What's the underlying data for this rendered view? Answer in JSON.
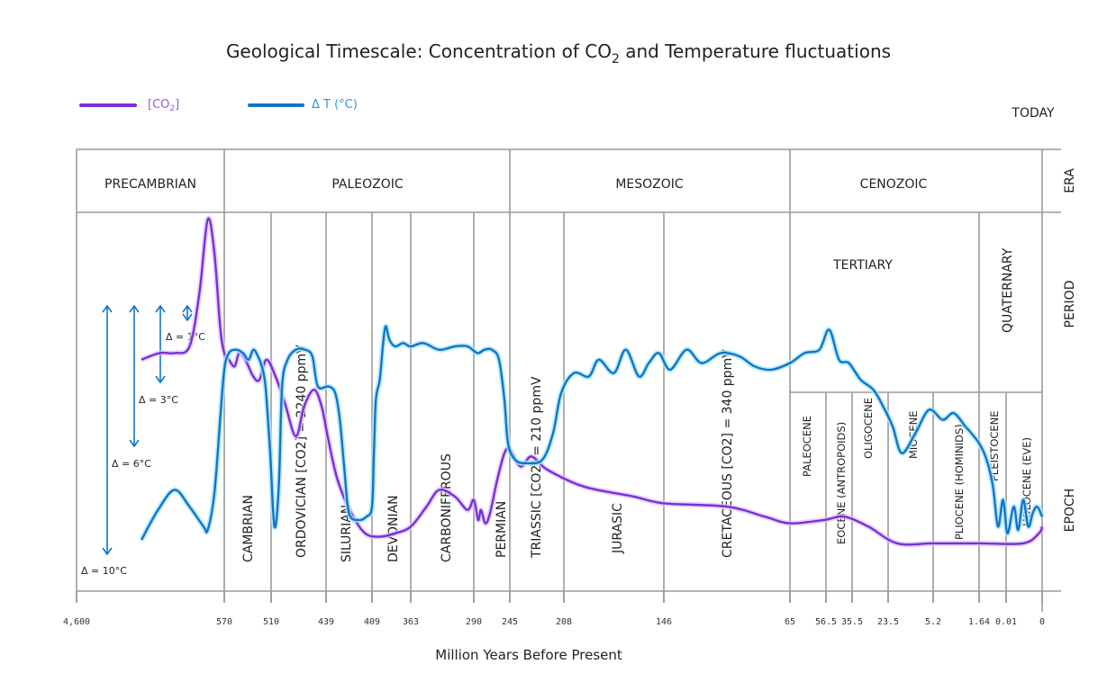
{
  "chart_data": {
    "type": "line",
    "title": "Geological Timescale: Concentration of CO₂ and Temperature fluctuations",
    "title_parts": {
      "before": "Geological Timescale: Concentration of CO",
      "sub": "2",
      "after": " and Temperature  fluctuations"
    },
    "xlabel": "Million Years Before Present",
    "today_label": "TODAY",
    "x_scale": "categorical-ticks (non-linear)",
    "x_ticks": [
      "4,600",
      "570",
      "510",
      "439",
      "409",
      "363",
      "290",
      "245",
      "208",
      "146",
      "65",
      "56.5",
      "35.5",
      "23.5",
      "5.2",
      "1.64",
      "0.01",
      "0"
    ],
    "x_tick_values": [
      4600,
      570,
      510,
      439,
      409,
      363,
      290,
      245,
      208,
      146,
      65,
      56.5,
      35.5,
      23.5,
      5.2,
      1.64,
      0.01,
      0
    ],
    "grid": true,
    "legend": {
      "placement": "top-left",
      "entries": [
        {
          "name": "[CO2]",
          "label_main": "[CO",
          "label_sub": "2",
          "label_end": "]",
          "color": "#7a2fd6",
          "text_color": "#9b59d9"
        },
        {
          "name": "ΔT (°C)",
          "label_main": "Δ T (°C)",
          "color": "#1474c4",
          "text_color": "#2a9ad6"
        }
      ]
    },
    "row_labels": {
      "era": "ERA",
      "period": "PERIOD",
      "epoch": "EPOCH"
    },
    "eras": [
      {
        "name": "PRECAMBRIAN",
        "from": 4600,
        "to": 570
      },
      {
        "name": "PALEOZOIC",
        "from": 570,
        "to": 245
      },
      {
        "name": "MESOZOIC",
        "from": 245,
        "to": 65
      },
      {
        "name": "CENOZOIC",
        "from": 65,
        "to": 0
      }
    ],
    "periods": [
      {
        "name": "CAMBRIAN",
        "from": 570,
        "to": 510
      },
      {
        "name": "ORDOVICIAN [CO2] = 2240 ppmV",
        "from": 510,
        "to": 439
      },
      {
        "name": "SILURIAN",
        "from": 439,
        "to": 409
      },
      {
        "name": "DEVONIAN",
        "from": 409,
        "to": 363
      },
      {
        "name": "CARBONIFEROUS",
        "from": 363,
        "to": 290
      },
      {
        "name": "PERMIAN",
        "from": 290,
        "to": 245
      },
      {
        "name": "TRIASSIC [CO2] = 210 ppmV",
        "from": 245,
        "to": 208
      },
      {
        "name": "JURASIC",
        "from": 208,
        "to": 146
      },
      {
        "name": "CRETACEOUS [CO2] = 340 ppmV",
        "from": 146,
        "to": 65
      },
      {
        "name": "TERTIARY",
        "from": 65,
        "to": 1.64
      },
      {
        "name": "QUATERNARY",
        "from": 1.64,
        "to": 0
      }
    ],
    "epochs": [
      {
        "name": "PALEOCENE",
        "from": 65,
        "to": 56.5
      },
      {
        "name": "EOCENE (ANTROPOIDS)",
        "from": 56.5,
        "to": 35.5
      },
      {
        "name": "OLIGOCENE",
        "from": 35.5,
        "to": 23.5
      },
      {
        "name": "MIOCENE",
        "from": 23.5,
        "to": 5.2
      },
      {
        "name": "PLIOCENE (HOMINIDS)",
        "from": 5.2,
        "to": 1.64,
        "color": "#5a5ad0"
      },
      {
        "name": "PLEISTOCENE",
        "from": 1.64,
        "to": 0.01
      },
      {
        "name": "HOLOCENE (EVE)",
        "from": 0.01,
        "to": 0
      }
    ],
    "annotations": [
      {
        "text": "Δ = 1°C",
        "delta_c": 1
      },
      {
        "text": "Δ = 3°C",
        "delta_c": 3
      },
      {
        "text": "Δ = 6°C",
        "delta_c": 6
      },
      {
        "text": "Δ = 10°C",
        "delta_c": 10
      }
    ],
    "y_note": "relative scale, 0 = bottom of plot, 1 = top of period row",
    "series": [
      {
        "name": "[CO2]",
        "color": "#7a2fd6",
        "points": [
          [
            0.0,
            0.58
          ],
          [
            0.22,
            0.6
          ],
          [
            0.4,
            0.6
          ],
          [
            0.58,
            0.62
          ],
          [
            0.7,
            0.78
          ],
          [
            0.8,
            1.0
          ],
          [
            0.88,
            0.9
          ],
          [
            0.95,
            0.68
          ],
          [
            1.0,
            0.6
          ],
          [
            1.1,
            0.58
          ],
          [
            1.22,
            0.56
          ],
          [
            1.32,
            0.6
          ],
          [
            1.45,
            0.58
          ],
          [
            1.62,
            0.53
          ],
          [
            1.75,
            0.52
          ],
          [
            1.9,
            0.58
          ],
          [
            2.08,
            0.53
          ],
          [
            2.25,
            0.45
          ],
          [
            2.45,
            0.35
          ],
          [
            2.6,
            0.44
          ],
          [
            2.78,
            0.49
          ],
          [
            2.92,
            0.44
          ],
          [
            3.05,
            0.34
          ],
          [
            3.25,
            0.22
          ],
          [
            3.55,
            0.12
          ],
          [
            3.85,
            0.06
          ],
          [
            4.2,
            0.05
          ],
          [
            4.6,
            0.06
          ],
          [
            5.0,
            0.08
          ],
          [
            5.25,
            0.14
          ],
          [
            5.45,
            0.19
          ],
          [
            5.7,
            0.17
          ],
          [
            5.9,
            0.13
          ],
          [
            6.0,
            0.16
          ],
          [
            6.12,
            0.1
          ],
          [
            6.2,
            0.13
          ],
          [
            6.32,
            0.09
          ],
          [
            6.45,
            0.12
          ],
          [
            6.65,
            0.22
          ],
          [
            6.85,
            0.3
          ],
          [
            7.0,
            0.31
          ],
          [
            7.2,
            0.26
          ],
          [
            7.4,
            0.29
          ],
          [
            7.7,
            0.25
          ],
          [
            8.2,
            0.2
          ],
          [
            8.7,
            0.17
          ],
          [
            9.0,
            0.15
          ],
          [
            9.5,
            0.14
          ],
          [
            9.8,
            0.11
          ],
          [
            10.0,
            0.09
          ],
          [
            10.35,
            0.1
          ],
          [
            10.55,
            0.11
          ],
          [
            10.8,
            0.08
          ],
          [
            11.1,
            0.03
          ],
          [
            11.5,
            0.03
          ],
          [
            12.0,
            0.03
          ],
          [
            12.7,
            0.03
          ],
          [
            12.95,
            0.06
          ],
          [
            13.0,
            0.08
          ]
        ]
      },
      {
        "name": "ΔT (°C)",
        "color": "#1474c4",
        "points": [
          [
            0.0,
            0.04
          ],
          [
            0.2,
            0.13
          ],
          [
            0.4,
            0.19
          ],
          [
            0.58,
            0.14
          ],
          [
            0.75,
            0.08
          ],
          [
            0.8,
            0.07
          ],
          [
            0.88,
            0.18
          ],
          [
            0.95,
            0.4
          ],
          [
            1.0,
            0.55
          ],
          [
            1.1,
            0.6
          ],
          [
            1.25,
            0.61
          ],
          [
            1.4,
            0.6
          ],
          [
            1.52,
            0.58
          ],
          [
            1.62,
            0.61
          ],
          [
            1.72,
            0.59
          ],
          [
            1.8,
            0.56
          ],
          [
            1.88,
            0.5
          ],
          [
            1.98,
            0.3
          ],
          [
            2.06,
            0.08
          ],
          [
            2.14,
            0.2
          ],
          [
            2.2,
            0.5
          ],
          [
            2.3,
            0.58
          ],
          [
            2.45,
            0.61
          ],
          [
            2.62,
            0.61
          ],
          [
            2.75,
            0.59
          ],
          [
            2.85,
            0.5
          ],
          [
            3.05,
            0.5
          ],
          [
            3.2,
            0.48
          ],
          [
            3.3,
            0.4
          ],
          [
            3.4,
            0.25
          ],
          [
            3.5,
            0.12
          ],
          [
            3.7,
            0.1
          ],
          [
            3.88,
            0.11
          ],
          [
            4.0,
            0.14
          ],
          [
            4.05,
            0.3
          ],
          [
            4.1,
            0.46
          ],
          [
            4.2,
            0.52
          ],
          [
            4.28,
            0.62
          ],
          [
            4.35,
            0.68
          ],
          [
            4.45,
            0.64
          ],
          [
            4.6,
            0.62
          ],
          [
            4.8,
            0.63
          ],
          [
            5.0,
            0.62
          ],
          [
            5.2,
            0.63
          ],
          [
            5.45,
            0.61
          ],
          [
            5.7,
            0.62
          ],
          [
            5.9,
            0.62
          ],
          [
            6.1,
            0.6
          ],
          [
            6.3,
            0.61
          ],
          [
            6.5,
            0.61
          ],
          [
            6.7,
            0.58
          ],
          [
            6.85,
            0.46
          ],
          [
            6.95,
            0.33
          ],
          [
            7.1,
            0.28
          ],
          [
            7.3,
            0.27
          ],
          [
            7.6,
            0.28
          ],
          [
            7.8,
            0.36
          ],
          [
            7.95,
            0.48
          ],
          [
            8.1,
            0.54
          ],
          [
            8.25,
            0.53
          ],
          [
            8.35,
            0.58
          ],
          [
            8.5,
            0.54
          ],
          [
            8.62,
            0.61
          ],
          [
            8.75,
            0.53
          ],
          [
            8.85,
            0.57
          ],
          [
            8.95,
            0.6
          ],
          [
            9.05,
            0.55
          ],
          [
            9.18,
            0.61
          ],
          [
            9.3,
            0.57
          ],
          [
            9.45,
            0.6
          ],
          [
            9.6,
            0.59
          ],
          [
            9.72,
            0.56
          ],
          [
            9.85,
            0.55
          ],
          [
            10.0,
            0.57
          ],
          [
            10.15,
            0.6
          ],
          [
            10.3,
            0.61
          ],
          [
            10.4,
            0.67
          ],
          [
            10.5,
            0.58
          ],
          [
            10.6,
            0.57
          ],
          [
            10.72,
            0.52
          ],
          [
            10.85,
            0.49
          ],
          [
            10.95,
            0.44
          ],
          [
            11.05,
            0.38
          ],
          [
            11.15,
            0.3
          ],
          [
            11.3,
            0.36
          ],
          [
            11.45,
            0.43
          ],
          [
            11.6,
            0.4
          ],
          [
            11.72,
            0.42
          ],
          [
            11.85,
            0.38
          ],
          [
            12.0,
            0.33
          ],
          [
            12.12,
            0.28
          ],
          [
            12.22,
            0.2
          ],
          [
            12.3,
            0.08
          ],
          [
            12.38,
            0.16
          ],
          [
            12.45,
            0.06
          ],
          [
            12.55,
            0.14
          ],
          [
            12.62,
            0.07
          ],
          [
            12.7,
            0.16
          ],
          [
            12.78,
            0.08
          ],
          [
            12.85,
            0.12
          ],
          [
            12.92,
            0.14
          ],
          [
            13.0,
            0.11
          ]
        ]
      }
    ]
  }
}
